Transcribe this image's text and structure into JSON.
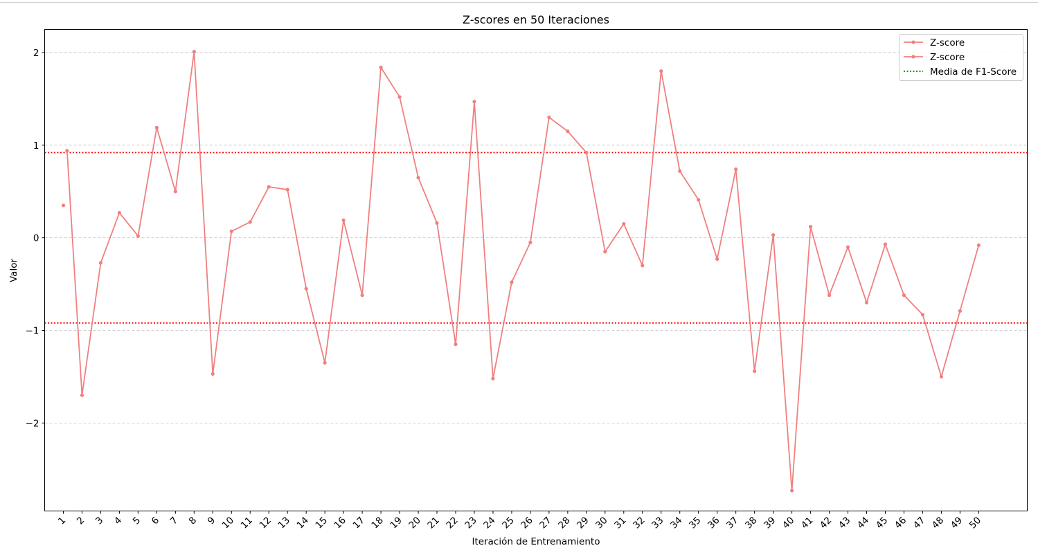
{
  "chart_data": {
    "type": "line",
    "title": "Z-scores en 50 Iteraciones",
    "xlabel": "Iteración de Entrenamiento",
    "ylabel": "Valor",
    "ylim": [
      -2.95,
      2.25
    ],
    "yticks": [
      -2,
      -1,
      0,
      1,
      2
    ],
    "ytick_labels": [
      "−2",
      "−1",
      "0",
      "1",
      "2"
    ],
    "x": [
      1,
      2,
      3,
      4,
      5,
      6,
      7,
      8,
      9,
      10,
      11,
      12,
      13,
      14,
      15,
      16,
      17,
      18,
      19,
      20,
      21,
      22,
      23,
      24,
      25,
      26,
      27,
      28,
      29,
      30,
      31,
      32,
      33,
      34,
      35,
      36,
      37,
      38,
      39,
      40,
      41,
      42,
      43,
      44,
      45,
      46,
      47,
      48,
      49,
      50
    ],
    "grid": "y-dashed",
    "legend_position": "top-right",
    "series": [
      {
        "name": "Z-score",
        "x": [
          1
        ],
        "values": [
          0.35
        ],
        "color": "#f08080"
      },
      {
        "name": "Z-score",
        "x": [
          1,
          2,
          3,
          4,
          5,
          6,
          7,
          8,
          9,
          10,
          11,
          12,
          13,
          14,
          15,
          16,
          17,
          18,
          19,
          20,
          21,
          22,
          23,
          24,
          25,
          26,
          27,
          28,
          29,
          30,
          31,
          32,
          33,
          34,
          35,
          36,
          37,
          38,
          39,
          40,
          41,
          42,
          43,
          44,
          45,
          46,
          47,
          48,
          49,
          50
        ],
        "values": [
          0.94,
          -1.7,
          -0.27,
          0.27,
          0.02,
          1.19,
          0.5,
          2.01,
          -1.47,
          0.07,
          0.17,
          0.55,
          0.52,
          -0.55,
          -1.35,
          0.19,
          -0.62,
          1.84,
          1.52,
          0.65,
          0.16,
          -1.15,
          1.47,
          -1.52,
          -0.48,
          -0.05,
          1.3,
          1.15,
          0.92,
          -0.15,
          0.15,
          -0.3,
          1.8,
          0.72,
          0.41,
          -0.23,
          0.74,
          -1.44,
          0.03,
          -2.73,
          0.12,
          -0.62,
          -0.1,
          -0.7,
          -0.07,
          -0.62,
          -0.83,
          -1.5,
          -0.79,
          -0.08
        ],
        "color": "#f08080"
      },
      {
        "name": "Media de F1-Score",
        "x": [],
        "values": [],
        "color": "#008000"
      }
    ],
    "reference_lines": [
      0.92,
      -0.92
    ],
    "reference_line_color": "#ff0000"
  }
}
